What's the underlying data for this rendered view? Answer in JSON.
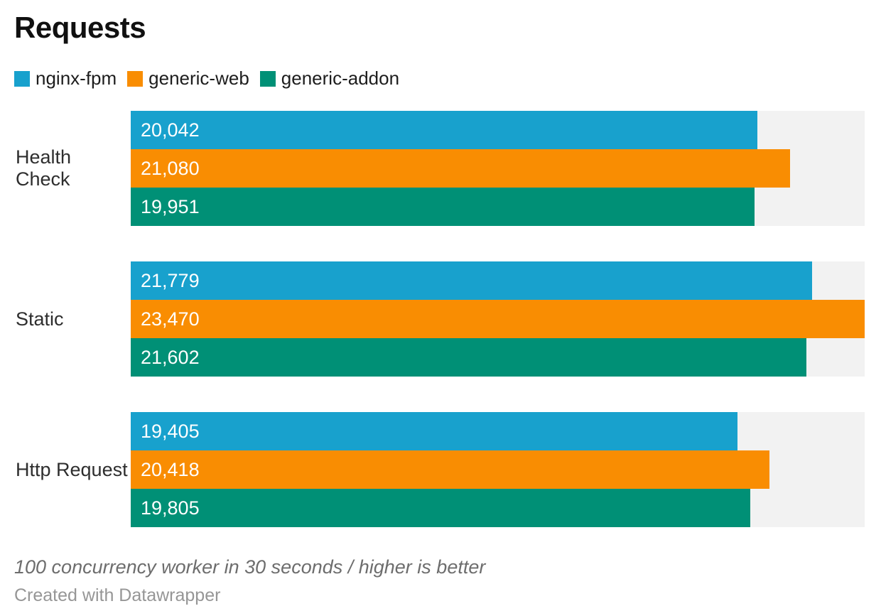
{
  "chart_data": {
    "type": "bar",
    "orientation": "horizontal",
    "title": "Requests",
    "categories": [
      "Health Check",
      "Static",
      "Http Request"
    ],
    "series": [
      {
        "name": "nginx-fpm",
        "color": "#18a1cd",
        "values": [
          20042,
          21779,
          19405
        ],
        "labels": [
          "20,042",
          "21,779",
          "19,405"
        ]
      },
      {
        "name": "generic-web",
        "color": "#f98d02",
        "values": [
          21080,
          23470,
          20418
        ],
        "labels": [
          "21,080",
          "23,470",
          "20,418"
        ]
      },
      {
        "name": "generic-addon",
        "color": "#009076",
        "values": [
          19951,
          21602,
          19805
        ],
        "labels": [
          "19,951",
          "21,602",
          "19,805"
        ]
      }
    ],
    "xlim": [
      0,
      23470
    ],
    "grid": false,
    "legend_position": "top",
    "track_color": "#f2f2f2",
    "value_label_color": "#ffffff",
    "notes": "100 concurrency worker in 30 seconds / higher is better",
    "attribution": "Created with Datawrapper"
  }
}
